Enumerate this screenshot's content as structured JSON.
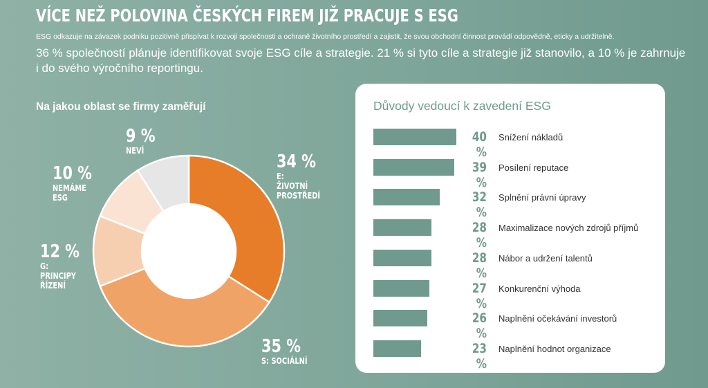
{
  "title": "VÍCE NEŽ POLOVINA ČESKÝCH FIREM JIŽ PRACUJE S ESG",
  "description": "ESG odkazuje na závazek podniku pozitivně přispívat k rozvoji společnosti a ochraně životního prostředí a zajistit, že svou obchodní činnost provádí odpovědně, eticky a udržitelně.",
  "lead": "36 % společností plánuje identifikovat svoje ESG cíle a strategie. 21 % si tyto cíle a strategie již stanovilo, a 10 % je zahrnuje i do svého výročního reportingu.",
  "chart_data": [
    {
      "type": "pie",
      "title": "Na jakou oblast se firmy zaměřují",
      "slices": [
        {
          "label": "E: ŽIVOTNÍ PROSTŘEDÍ",
          "value": 34,
          "value_label": "34 %",
          "color": "#e77d28"
        },
        {
          "label": "S: SOCIÁLNÍ",
          "value": 35,
          "value_label": "35 %",
          "color": "#efa366"
        },
        {
          "label": "G: PRINCIPY ŘÍZENÍ",
          "value": 12,
          "value_label": "12 %",
          "color": "#f6cfb0"
        },
        {
          "label": "NEMÁME ESG",
          "value": 10,
          "value_label": "10 %",
          "color": "#fae3d3"
        },
        {
          "label": "NEVÍ",
          "value": 9,
          "value_label": "9 %",
          "color": "#e6e6e6"
        }
      ]
    },
    {
      "type": "bar",
      "orientation": "horizontal",
      "title": "Důvody vedoucí k zavedení ESG",
      "categories": [
        "Snížení nákladů",
        "Posílení reputace",
        "Splnění právní úpravy",
        "Maximalizace nových zdrojů příjmů",
        "Nábor a udržení talentů",
        "Konkurenční výhoda",
        "Naplnění očekávání investorů",
        "Naplnění hodnot organizace"
      ],
      "values": [
        40,
        39,
        32,
        28,
        28,
        27,
        26,
        23
      ],
      "value_labels": [
        "40 %",
        "39 %",
        "32 %",
        "28 %",
        "28 %",
        "27 %",
        "26 %",
        "23 %"
      ],
      "bar_color": "#6f9a8d"
    }
  ]
}
